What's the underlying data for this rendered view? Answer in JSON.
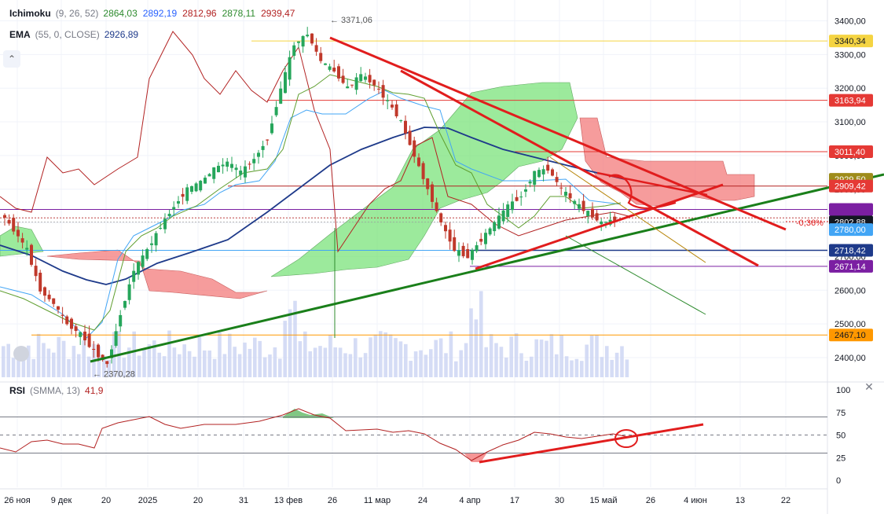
{
  "legend": {
    "ichimoku": {
      "name": "Ichimoku",
      "params": "(9, 26, 52)",
      "values": [
        "2864,03",
        "2892,19",
        "2812,96",
        "2878,11",
        "2939,47"
      ],
      "colors": [
        "#2e8b2e",
        "#2962ff",
        "#b22222",
        "#2e8b2e",
        "#b22222"
      ]
    },
    "ema": {
      "name": "EMA",
      "params": "(55, 0, CLOSE)",
      "value": "2926,89",
      "color": "#1e3a8a"
    },
    "rsi": {
      "name": "RSI",
      "params": "(SMMA, 13)",
      "value": "41,9",
      "color": "#b22222"
    }
  },
  "icons": {
    "collapse": "chevron-up-icon",
    "close": "close-icon",
    "logo": "tradingview-logo-icon"
  },
  "chart_data": {
    "type": "candlestick",
    "x_ticks": [
      "26 ноя",
      "9 дек",
      "20",
      "2025",
      "20",
      "31",
      "13 фев",
      "26",
      "11 мар",
      "24",
      "4 апр",
      "17",
      "30",
      "15 май",
      "26",
      "4 июн",
      "13",
      "22"
    ],
    "y_ticks": [
      "3400,00",
      "3300,00",
      "3200,00",
      "3100,00",
      "3000,00",
      "2900,00",
      "2800,00",
      "2700,00",
      "2600,00",
      "2500,00",
      "2400,00"
    ],
    "ylim": [
      2370,
      3420
    ],
    "annotations": [
      {
        "text": "3371,06",
        "value": 3371.06
      },
      {
        "text": "2370,28",
        "value": 2370.28
      }
    ],
    "percent_label": "-0,36%",
    "price_lines": [
      {
        "value": 3340.34,
        "label": "3340,34",
        "bg": "#f5d442",
        "fg": "#131722"
      },
      {
        "value": 3163.94,
        "label": "3163,94",
        "bg": "#e53935",
        "fg": "#ffffff"
      },
      {
        "value": 3011.4,
        "label": "3011,40",
        "bg": "#e53935",
        "fg": "#ffffff"
      },
      {
        "value": 2929.5,
        "label": "2929,50",
        "bg": "#9e8c1a",
        "fg": "#ffffff"
      },
      {
        "value": 2909.42,
        "label": "2909,42",
        "bg": "#e53935",
        "fg": "#ffffff"
      },
      {
        "value": 2840.0,
        "label": "",
        "bg": "#7b1fa2",
        "fg": "#ffffff"
      },
      {
        "value": 2802.88,
        "label": "2802,88",
        "bg": "#131722",
        "fg": "#ffffff"
      },
      {
        "value": 2780.0,
        "label": "2780,00",
        "bg": "#42a5f5",
        "fg": "#ffffff"
      },
      {
        "value": 2718.42,
        "label": "2718,42",
        "bg": "#1e3a8a",
        "fg": "#ffffff"
      },
      {
        "value": 2671.14,
        "label": "2671,14",
        "bg": "#7b1fa2",
        "fg": "#ffffff"
      },
      {
        "value": 2467.1,
        "label": "2467,10",
        "bg": "#ff9800",
        "fg": "#131722"
      }
    ],
    "rsi": {
      "value": 41.9,
      "levels": [
        70,
        50,
        30
      ],
      "y_ticks": [
        "100",
        "75",
        "50",
        "25",
        "0"
      ],
      "ylim": [
        0,
        100
      ]
    }
  }
}
